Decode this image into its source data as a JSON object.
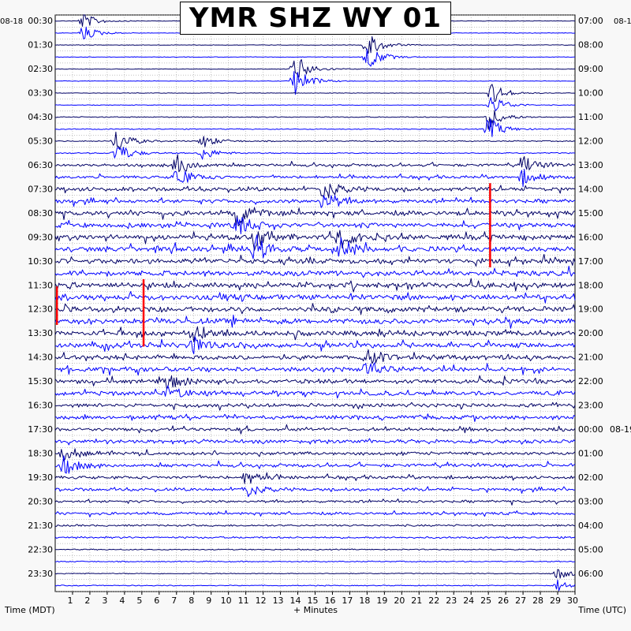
{
  "chart_data": {
    "type": "helicorder",
    "title": "YMR SHZ WY 01",
    "left_axis_label": "Time (MDT)",
    "right_axis_label": "Time (UTC)",
    "x_axis_label": "+ Minutes",
    "left_date": "08-18",
    "right_date_start": "08-1",
    "right_date_change": "08-19",
    "x_ticks": [
      1,
      2,
      3,
      4,
      5,
      6,
      7,
      8,
      9,
      10,
      11,
      12,
      13,
      14,
      15,
      16,
      17,
      18,
      19,
      20,
      21,
      22,
      23,
      24,
      25,
      26,
      27,
      28,
      29,
      30
    ],
    "left_time_labels": [
      "00:30",
      "01:30",
      "02:30",
      "03:30",
      "04:30",
      "05:30",
      "06:30",
      "07:30",
      "08:30",
      "09:30",
      "10:30",
      "11:30",
      "12:30",
      "13:30",
      "14:30",
      "15:30",
      "16:30",
      "17:30",
      "18:30",
      "19:30",
      "20:30",
      "21:30",
      "22:30",
      "23:30"
    ],
    "right_time_labels": [
      "07:00",
      "08:00",
      "09:00",
      "10:00",
      "11:00",
      "12:00",
      "13:00",
      "14:00",
      "15:00",
      "16:00",
      "17:00",
      "18:00",
      "19:00",
      "20:00",
      "21:00",
      "22:00",
      "23:00",
      "00:00",
      "01:00",
      "02:00",
      "03:00",
      "04:00",
      "05:00",
      "06:00"
    ],
    "trace_lines_per_hour": 2,
    "trace_colors": [
      "#000066",
      "#0000ff"
    ],
    "clip_color": "#ff0000",
    "grid": true,
    "noise_level": [
      0.3,
      0.3,
      0.3,
      0.3,
      0.5,
      0.6,
      1.4,
      2.0,
      2.3,
      2.6,
      2.6,
      2.7,
      2.7,
      2.6,
      2.3,
      2.1,
      1.9,
      1.8,
      1.7,
      1.5,
      1.3,
      1.0,
      0.6,
      0.5
    ],
    "events": [
      {
        "hour": 0,
        "minute": 1.6,
        "amplitude": 1.5
      },
      {
        "hour": 1,
        "minute": 18.0,
        "amplitude": 2.5
      },
      {
        "hour": 2,
        "minute": 13.8,
        "amplitude": 3.0
      },
      {
        "hour": 3,
        "minute": 25.2,
        "amplitude": 2.0
      },
      {
        "hour": 4,
        "minute": 25.0,
        "amplitude": 2.2
      },
      {
        "hour": 5,
        "minute": 3.5,
        "amplitude": 2.2
      },
      {
        "hour": 5,
        "minute": 8.5,
        "amplitude": 1.3
      },
      {
        "hour": 6,
        "minute": 7.0,
        "amplitude": 2.0
      },
      {
        "hour": 6,
        "minute": 27.0,
        "amplitude": 1.6
      },
      {
        "hour": 7,
        "minute": 15.5,
        "amplitude": 2.0
      },
      {
        "hour": 8,
        "minute": 10.5,
        "amplitude": 2.4
      },
      {
        "hour": 9,
        "minute": 11.5,
        "amplitude": 2.2
      },
      {
        "hour": 9,
        "minute": 16.5,
        "amplitude": 2.0
      },
      {
        "hour": 13,
        "minute": 8.0,
        "amplitude": 1.6
      },
      {
        "hour": 14,
        "minute": 18.0,
        "amplitude": 1.5
      },
      {
        "hour": 15,
        "minute": 6.5,
        "amplitude": 1.2
      },
      {
        "hour": 18,
        "minute": 0.5,
        "amplitude": 1.6
      },
      {
        "hour": 19,
        "minute": 11.0,
        "amplitude": 1.5
      },
      {
        "hour": 23,
        "minute": 29.0,
        "amplitude": 1.1
      }
    ],
    "clipped_spikes": [
      {
        "minute": 25.1,
        "from_hour": 7.0,
        "to_hour": 10.5
      },
      {
        "minute": 5.1,
        "from_hour": 11.0,
        "to_hour": 13.8
      },
      {
        "minute": 0.1,
        "from_hour": 11.3,
        "to_hour": 12.9
      }
    ]
  }
}
